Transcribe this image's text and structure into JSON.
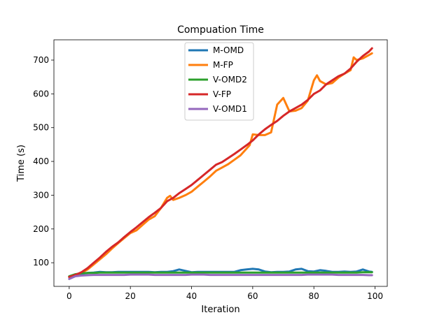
{
  "chart_data": {
    "type": "line",
    "title": "Compuation Time",
    "xlabel": "Iteration",
    "ylabel": "Time (s)",
    "xlim": [
      -5,
      104
    ],
    "ylim": [
      30,
      760
    ],
    "xticks": [
      0,
      20,
      40,
      60,
      80,
      100
    ],
    "yticks": [
      100,
      200,
      300,
      400,
      500,
      600,
      700
    ],
    "legend_position": "top-center",
    "grid": false,
    "series": [
      {
        "name": "M-OMD",
        "color": "#1f77b4",
        "x": [
          0,
          2,
          4,
          6,
          8,
          10,
          12,
          14,
          16,
          18,
          20,
          22,
          24,
          26,
          28,
          30,
          32,
          34,
          36,
          38,
          40,
          42,
          44,
          46,
          48,
          50,
          52,
          54,
          56,
          58,
          60,
          62,
          64,
          66,
          68,
          70,
          72,
          74,
          76,
          78,
          80,
          82,
          84,
          86,
          88,
          90,
          92,
          94,
          96,
          98,
          99
        ],
        "y": [
          58,
          62,
          67,
          70,
          71,
          73,
          72,
          72,
          73,
          73,
          73,
          73,
          73,
          73,
          72,
          73,
          73,
          75,
          80,
          76,
          72,
          73,
          73,
          73,
          73,
          73,
          73,
          73,
          78,
          80,
          82,
          80,
          74,
          72,
          73,
          73,
          74,
          80,
          82,
          75,
          74,
          78,
          76,
          73,
          73,
          74,
          73,
          74,
          80,
          74,
          73
        ]
      },
      {
        "name": "M-FP",
        "color": "#ff7f0e",
        "x": [
          0,
          2,
          4,
          6,
          8,
          10,
          12,
          14,
          16,
          18,
          20,
          22,
          24,
          26,
          28,
          30,
          32,
          33,
          34,
          36,
          38,
          40,
          42,
          44,
          46,
          48,
          50,
          52,
          54,
          56,
          58,
          59,
          60,
          62,
          64,
          66,
          68,
          70,
          72,
          74,
          76,
          78,
          80,
          81,
          82,
          84,
          86,
          88,
          90,
          92,
          93,
          94,
          96,
          98,
          99
        ],
        "y": [
          58,
          62,
          70,
          80,
          95,
          110,
          125,
          142,
          158,
          173,
          188,
          196,
          212,
          228,
          238,
          262,
          292,
          298,
          286,
          292,
          300,
          310,
          325,
          340,
          355,
          372,
          382,
          392,
          405,
          418,
          438,
          448,
          480,
          478,
          478,
          486,
          568,
          588,
          548,
          550,
          558,
          580,
          640,
          655,
          638,
          628,
          632,
          648,
          660,
          670,
          708,
          700,
          705,
          715,
          720
        ]
      },
      {
        "name": "V-OMD2",
        "color": "#2ca02c",
        "x": [
          0,
          2,
          4,
          6,
          8,
          10,
          12,
          14,
          16,
          18,
          20,
          22,
          24,
          26,
          28,
          30,
          32,
          34,
          36,
          38,
          40,
          42,
          44,
          46,
          48,
          50,
          52,
          54,
          56,
          58,
          60,
          62,
          64,
          66,
          68,
          70,
          72,
          74,
          76,
          78,
          80,
          82,
          84,
          86,
          88,
          90,
          92,
          94,
          96,
          98,
          99
        ],
        "y": [
          60,
          66,
          69,
          70,
          70,
          71,
          71,
          71,
          71,
          71,
          71,
          71,
          71,
          71,
          71,
          71,
          71,
          71,
          71,
          71,
          71,
          71,
          71,
          71,
          71,
          71,
          71,
          71,
          71,
          71,
          71,
          71,
          71,
          71,
          71,
          71,
          71,
          71,
          71,
          71,
          71,
          71,
          71,
          71,
          71,
          71,
          71,
          71,
          72,
          72,
          72
        ]
      },
      {
        "name": "V-FP",
        "color": "#d62728",
        "x": [
          0,
          2,
          4,
          6,
          8,
          10,
          12,
          14,
          16,
          18,
          20,
          22,
          24,
          26,
          28,
          30,
          32,
          34,
          36,
          38,
          40,
          42,
          44,
          46,
          48,
          50,
          52,
          54,
          56,
          58,
          60,
          62,
          64,
          66,
          68,
          70,
          72,
          74,
          76,
          78,
          80,
          82,
          84,
          86,
          88,
          90,
          92,
          94,
          96,
          98,
          99
        ],
        "y": [
          58,
          64,
          72,
          84,
          100,
          115,
          132,
          147,
          160,
          176,
          191,
          205,
          220,
          235,
          248,
          262,
          282,
          292,
          306,
          318,
          330,
          345,
          360,
          375,
          390,
          398,
          410,
          422,
          435,
          448,
          462,
          480,
          495,
          508,
          520,
          535,
          548,
          558,
          568,
          582,
          600,
          610,
          628,
          640,
          652,
          660,
          675,
          695,
          712,
          725,
          735
        ]
      },
      {
        "name": "V-OMD1",
        "color": "#9467bd",
        "x": [
          0,
          2,
          4,
          6,
          8,
          10,
          12,
          14,
          16,
          18,
          20,
          22,
          24,
          26,
          28,
          30,
          32,
          34,
          36,
          38,
          40,
          42,
          44,
          46,
          48,
          50,
          52,
          54,
          56,
          58,
          60,
          62,
          64,
          66,
          68,
          70,
          72,
          74,
          76,
          78,
          80,
          82,
          84,
          86,
          88,
          90,
          92,
          94,
          96,
          98,
          99
        ],
        "y": [
          52,
          60,
          62,
          63,
          64,
          64,
          64,
          64,
          64,
          64,
          65,
          65,
          65,
          65,
          64,
          64,
          64,
          64,
          64,
          64,
          65,
          65,
          65,
          64,
          64,
          64,
          64,
          64,
          64,
          64,
          64,
          64,
          64,
          64,
          64,
          64,
          64,
          64,
          64,
          65,
          65,
          65,
          65,
          65,
          64,
          64,
          64,
          64,
          64,
          63,
          63
        ]
      }
    ]
  }
}
